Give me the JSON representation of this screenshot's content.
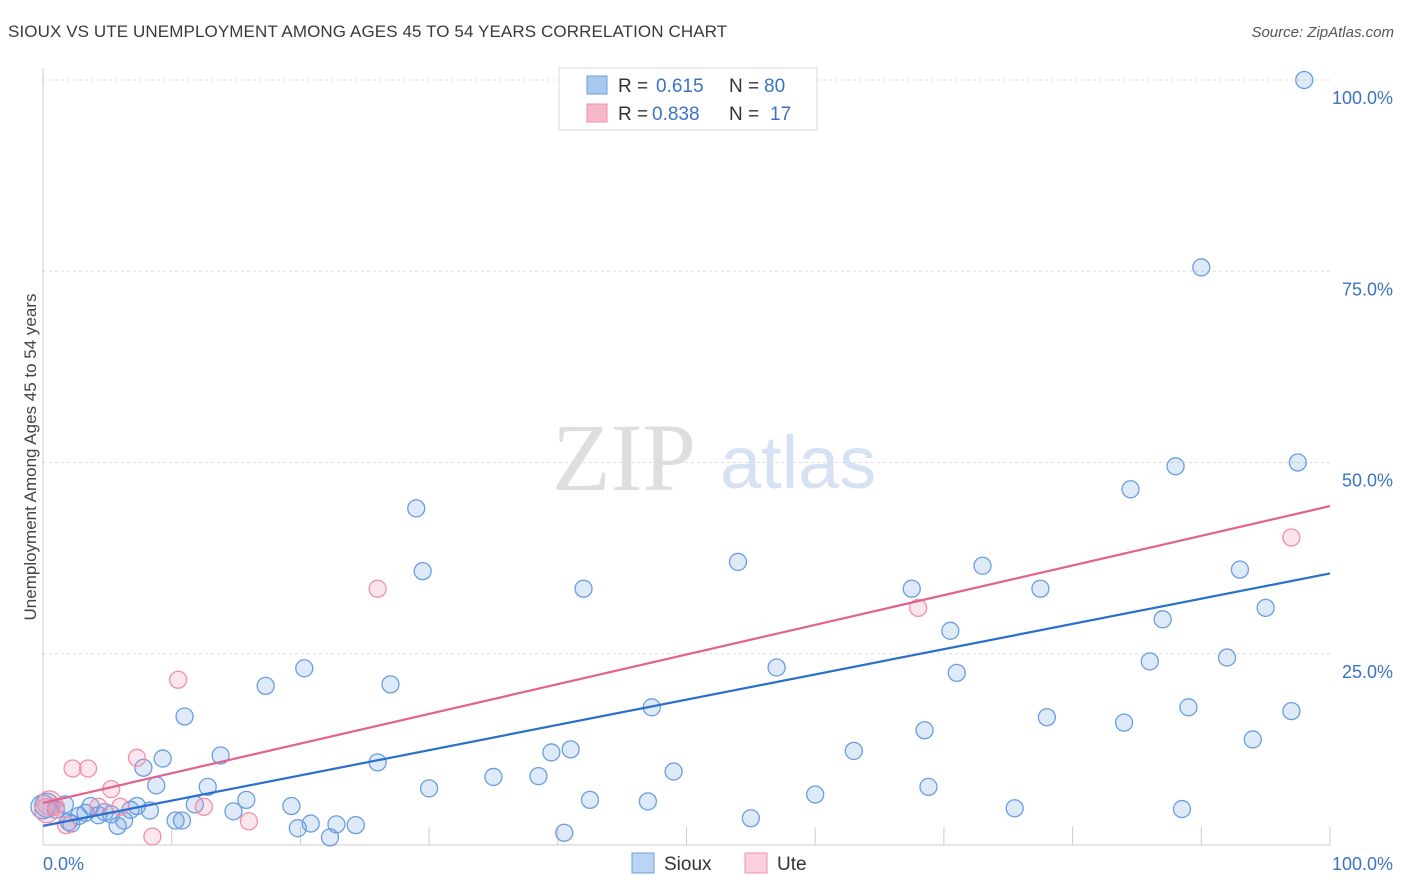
{
  "header": {
    "title": "SIOUX VS UTE UNEMPLOYMENT AMONG AGES 45 TO 54 YEARS CORRELATION CHART",
    "source": "Source: ZipAtlas.com"
  },
  "watermark": {
    "zip": "ZIP",
    "atlas": "atlas"
  },
  "legend": {
    "rows": [
      {
        "r_label": "R =",
        "r_value": "0.615",
        "n_label": "N =",
        "n_value": "80",
        "color": "#a9c8ef"
      },
      {
        "r_label": "R =",
        "r_value": "0.838",
        "n_label": "N =",
        "n_value": "17",
        "color": "#f7b8ca"
      }
    ]
  },
  "bottom_legend": {
    "sioux": "Sioux",
    "ute": "Ute"
  },
  "chart_data": {
    "type": "scatter",
    "title": "SIOUX VS UTE UNEMPLOYMENT AMONG AGES 45 TO 54 YEARS CORRELATION CHART",
    "xlabel": "",
    "ylabel": "Unemployment Among Ages 45 to 54 years",
    "xlim": [
      0,
      100
    ],
    "ylim": [
      0,
      100
    ],
    "x_tick_labels": [
      "0.0%",
      "100.0%"
    ],
    "y_ticks": [
      25,
      50,
      75,
      100
    ],
    "y_tick_labels": [
      "25.0%",
      "50.0%",
      "75.0%",
      "100.0%"
    ],
    "grid": true,
    "legend_position": "top-center",
    "series": [
      {
        "name": "Sioux",
        "color": "#6a9ee0",
        "line_color": "#2a6fcc",
        "trend": {
          "x": [
            0,
            100
          ],
          "y": [
            2.5,
            35.5
          ]
        },
        "points": [
          [
            0.3,
            5.2
          ],
          [
            1.0,
            4.6
          ],
          [
            1.7,
            5.3
          ],
          [
            2.2,
            2.8
          ],
          [
            2.8,
            3.8
          ],
          [
            3.3,
            4.2
          ],
          [
            3.7,
            5.1
          ],
          [
            4.3,
            3.9
          ],
          [
            4.8,
            4.3
          ],
          [
            5.3,
            4.0
          ],
          [
            5.8,
            2.5
          ],
          [
            6.3,
            3.2
          ],
          [
            6.8,
            4.6
          ],
          [
            7.3,
            5.1
          ],
          [
            7.8,
            10.1
          ],
          [
            8.3,
            4.5
          ],
          [
            8.8,
            7.8
          ],
          [
            9.3,
            11.3
          ],
          [
            10.3,
            3.2
          ],
          [
            10.8,
            3.2
          ],
          [
            11.0,
            16.8
          ],
          [
            11.8,
            5.3
          ],
          [
            12.8,
            7.6
          ],
          [
            13.8,
            11.7
          ],
          [
            14.8,
            4.4
          ],
          [
            15.8,
            5.9
          ],
          [
            17.3,
            20.8
          ],
          [
            19.3,
            5.1
          ],
          [
            19.8,
            2.2
          ],
          [
            20.3,
            23.1
          ],
          [
            20.8,
            2.8
          ],
          [
            22.3,
            1.0
          ],
          [
            22.8,
            2.7
          ],
          [
            24.3,
            2.6
          ],
          [
            26.0,
            10.8
          ],
          [
            27.0,
            21.0
          ],
          [
            29.0,
            44.0
          ],
          [
            29.5,
            35.8
          ],
          [
            30.0,
            7.4
          ],
          [
            35.0,
            8.9
          ],
          [
            38.5,
            9.0
          ],
          [
            39.5,
            12.1
          ],
          [
            40.5,
            1.6
          ],
          [
            41.0,
            12.5
          ],
          [
            42.0,
            33.5
          ],
          [
            42.5,
            5.9
          ],
          [
            47.0,
            5.7
          ],
          [
            47.3,
            18.0
          ],
          [
            49.0,
            9.6
          ],
          [
            54.0,
            37.0
          ],
          [
            55.0,
            3.5
          ],
          [
            57.0,
            23.2
          ],
          [
            60.0,
            6.6
          ],
          [
            63.0,
            12.3
          ],
          [
            67.5,
            33.5
          ],
          [
            68.5,
            15.0
          ],
          [
            68.8,
            7.6
          ],
          [
            70.5,
            28.0
          ],
          [
            71.0,
            22.5
          ],
          [
            73.0,
            36.5
          ],
          [
            75.5,
            4.8
          ],
          [
            77.5,
            33.5
          ],
          [
            78.0,
            16.7
          ],
          [
            84.0,
            16.0
          ],
          [
            84.5,
            46.5
          ],
          [
            86.0,
            24.0
          ],
          [
            87.0,
            29.5
          ],
          [
            88.0,
            49.5
          ],
          [
            88.5,
            4.7
          ],
          [
            89.0,
            18.0
          ],
          [
            90.0,
            75.5
          ],
          [
            92.0,
            24.5
          ],
          [
            93.0,
            36.0
          ],
          [
            94.0,
            13.8
          ],
          [
            95.0,
            31.0
          ],
          [
            97.0,
            17.5
          ],
          [
            97.5,
            50.0
          ],
          [
            98.0,
            100.0
          ],
          [
            0.0,
            5.0
          ],
          [
            2.0,
            3.0
          ]
        ]
      },
      {
        "name": "Ute",
        "color": "#f28fad",
        "line_color": "#e0628e",
        "trend": {
          "x": [
            0,
            100
          ],
          "y": [
            5.5,
            44.3
          ]
        },
        "points": [
          [
            0.3,
            4.5
          ],
          [
            1.0,
            5.0
          ],
          [
            1.8,
            2.6
          ],
          [
            2.3,
            10.0
          ],
          [
            3.5,
            10.0
          ],
          [
            4.3,
            5.0
          ],
          [
            5.3,
            7.3
          ],
          [
            6.0,
            5.0
          ],
          [
            7.3,
            11.4
          ],
          [
            8.5,
            1.1
          ],
          [
            10.5,
            21.6
          ],
          [
            12.5,
            5.0
          ],
          [
            16.0,
            3.1
          ],
          [
            26.0,
            33.5
          ],
          [
            68.0,
            31.0
          ],
          [
            97.0,
            40.2
          ],
          [
            0.5,
            5.5
          ]
        ]
      }
    ]
  }
}
